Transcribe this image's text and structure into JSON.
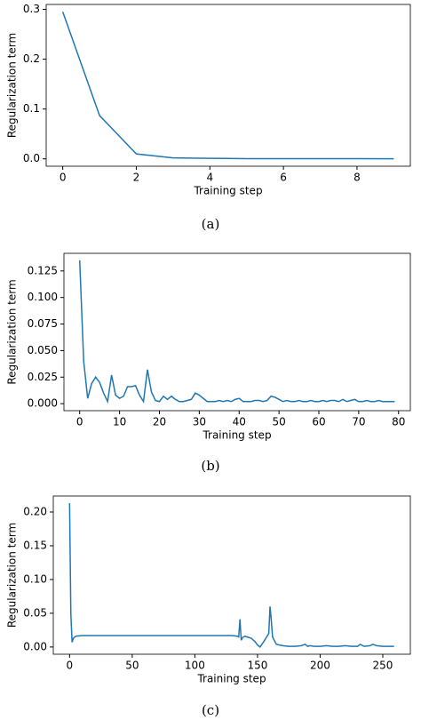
{
  "chart_data": [
    {
      "type": "line",
      "caption": "(a)",
      "xlabel": "Training step",
      "ylabel": "Regularization term",
      "color": "#1f77b4",
      "x": [
        0,
        1,
        2,
        3,
        4,
        5,
        6,
        7,
        8,
        9
      ],
      "values": [
        0.295,
        0.087,
        0.01,
        0.002,
        0.001,
        0.0005,
        0.0004,
        0.0003,
        0.0003,
        0.0002
      ],
      "xlim": [
        -0.45,
        9.45
      ],
      "ylim": [
        -0.01475,
        0.30975
      ],
      "xticks": [
        0,
        2,
        4,
        6,
        8
      ],
      "yticks": [
        {
          "value": 0,
          "label": "0.0"
        },
        {
          "value": 0.1,
          "label": "0.1"
        },
        {
          "value": 0.2,
          "label": "0.2"
        },
        {
          "value": 0.3,
          "label": "0.3"
        }
      ]
    },
    {
      "type": "line",
      "caption": "(b)",
      "xlabel": "Training step",
      "ylabel": "Regularization term",
      "color": "#1f77b4",
      "x": [
        0,
        1,
        2,
        3,
        4,
        5,
        6,
        7,
        8,
        9,
        10,
        11,
        12,
        13,
        14,
        15,
        16,
        17,
        18,
        19,
        20,
        21,
        22,
        23,
        24,
        25,
        26,
        27,
        28,
        29,
        30,
        31,
        32,
        33,
        34,
        35,
        36,
        37,
        38,
        39,
        40,
        41,
        42,
        43,
        44,
        45,
        46,
        47,
        48,
        49,
        50,
        51,
        52,
        53,
        54,
        55,
        56,
        57,
        58,
        59,
        60,
        61,
        62,
        63,
        64,
        65,
        66,
        67,
        68,
        69,
        70,
        71,
        72,
        73,
        74,
        75,
        76,
        77,
        78,
        79
      ],
      "values": [
        0.135,
        0.04,
        0.005,
        0.019,
        0.025,
        0.02,
        0.01,
        0.002,
        0.027,
        0.008,
        0.005,
        0.007,
        0.016,
        0.016,
        0.017,
        0.008,
        0.002,
        0.032,
        0.011,
        0.003,
        0.002,
        0.007,
        0.004,
        0.007,
        0.004,
        0.002,
        0.002,
        0.003,
        0.004,
        0.01,
        0.008,
        0.005,
        0.002,
        0.002,
        0.002,
        0.003,
        0.002,
        0.003,
        0.002,
        0.004,
        0.005,
        0.002,
        0.002,
        0.002,
        0.003,
        0.003,
        0.002,
        0.003,
        0.007,
        0.006,
        0.004,
        0.002,
        0.003,
        0.002,
        0.002,
        0.003,
        0.002,
        0.002,
        0.003,
        0.002,
        0.002,
        0.003,
        0.002,
        0.003,
        0.003,
        0.002,
        0.004,
        0.002,
        0.003,
        0.004,
        0.002,
        0.002,
        0.003,
        0.002,
        0.002,
        0.003,
        0.002,
        0.002,
        0.002,
        0.002
      ],
      "xlim": [
        -3.95,
        82.95
      ],
      "ylim": [
        -0.0066,
        0.1416
      ],
      "xticks": [
        0,
        10,
        20,
        30,
        40,
        50,
        60,
        70,
        80
      ],
      "yticks": [
        {
          "value": 0,
          "label": "0.000"
        },
        {
          "value": 0.025,
          "label": "0.025"
        },
        {
          "value": 0.05,
          "label": "0.050"
        },
        {
          "value": 0.075,
          "label": "0.075"
        },
        {
          "value": 0.1,
          "label": "0.100"
        },
        {
          "value": 0.125,
          "label": "0.125"
        }
      ]
    },
    {
      "type": "line",
      "caption": "(c)",
      "xlabel": "Training step",
      "ylabel": "Regularization term",
      "color": "#1f77b4",
      "x": [
        0,
        1,
        2,
        3,
        5,
        10,
        20,
        40,
        60,
        80,
        100,
        120,
        130,
        134,
        135,
        136,
        137,
        138,
        140,
        145,
        148,
        150,
        152,
        155,
        157,
        159,
        160,
        161,
        162,
        165,
        170,
        175,
        180,
        185,
        188,
        190,
        192,
        195,
        200,
        205,
        210,
        215,
        220,
        225,
        230,
        232,
        235,
        240,
        242,
        245,
        250,
        255,
        259
      ],
      "values": [
        0.213,
        0.05,
        0.007,
        0.013,
        0.016,
        0.017,
        0.017,
        0.017,
        0.017,
        0.017,
        0.017,
        0.017,
        0.017,
        0.016,
        0.015,
        0.041,
        0.01,
        0.014,
        0.016,
        0.013,
        0.008,
        0.003,
        0.0,
        0.008,
        0.014,
        0.02,
        0.06,
        0.04,
        0.015,
        0.004,
        0.002,
        0.001,
        0.001,
        0.002,
        0.004,
        0.001,
        0.002,
        0.001,
        0.001,
        0.002,
        0.001,
        0.001,
        0.002,
        0.001,
        0.001,
        0.004,
        0.001,
        0.002,
        0.004,
        0.002,
        0.001,
        0.001,
        0.001
      ],
      "xlim": [
        -13,
        272
      ],
      "ylim": [
        -0.0107,
        0.2237
      ],
      "xticks": [
        0,
        50,
        100,
        150,
        200,
        250
      ],
      "yticks": [
        {
          "value": 0,
          "label": "0.00"
        },
        {
          "value": 0.05,
          "label": "0.05"
        },
        {
          "value": 0.1,
          "label": "0.10"
        },
        {
          "value": 0.15,
          "label": "0.15"
        },
        {
          "value": 0.2,
          "label": "0.20"
        }
      ]
    }
  ]
}
